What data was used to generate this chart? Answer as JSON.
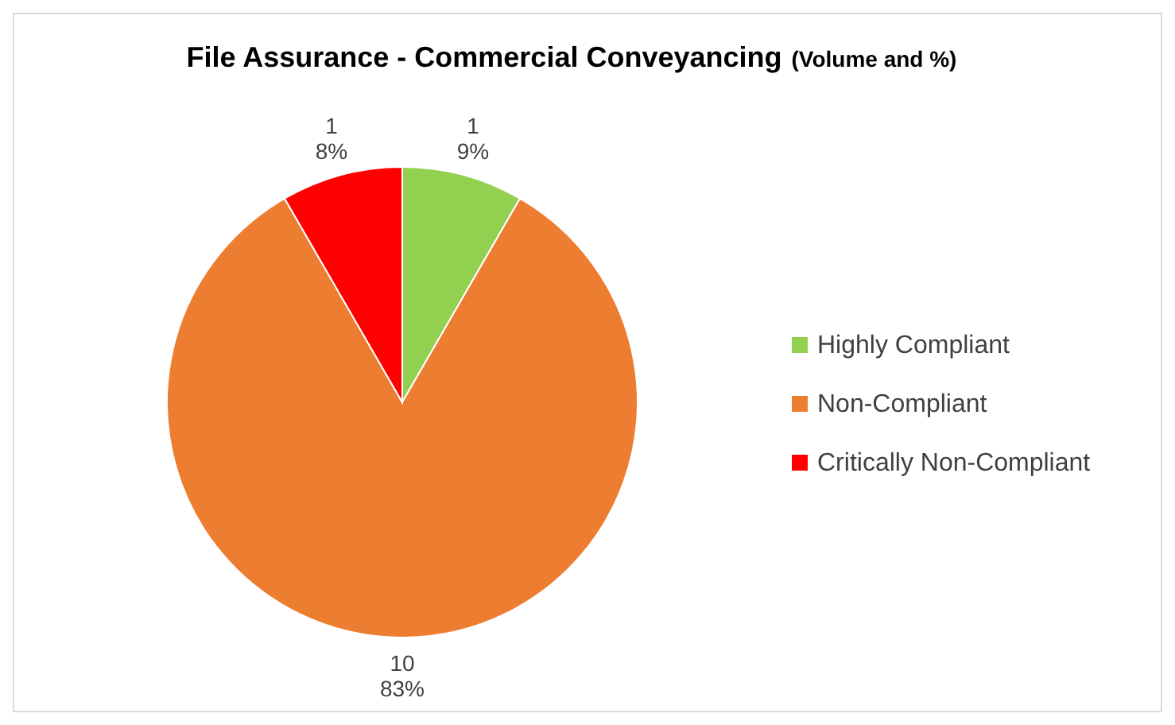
{
  "chart_data": {
    "type": "pie",
    "title": "File Assurance - Commercial Conveyancing",
    "subtitle": "(Volume and %)",
    "categories": [
      "Highly Compliant",
      "Non-Compliant",
      "Critically Non-Compliant"
    ],
    "values": [
      1,
      10,
      1
    ],
    "colors": [
      "#92d050",
      "#ed7d31",
      "#ff0000"
    ],
    "value_labels": [
      "1\n9%",
      "10\n83%",
      "1\n8%"
    ],
    "legend": "right"
  }
}
